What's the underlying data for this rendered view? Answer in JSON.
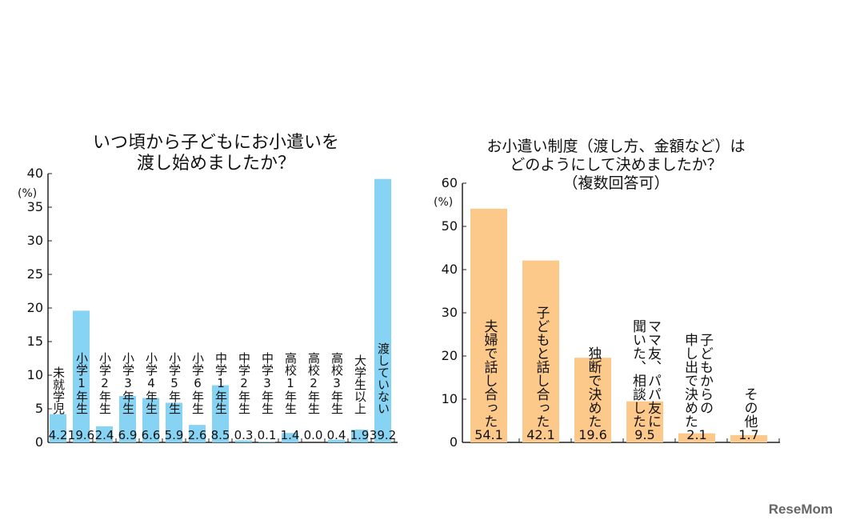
{
  "chart_data": [
    {
      "type": "bar",
      "title": "いつ頃から子どもにお小遣いを\n渡し始めましたか？",
      "ylabel": "(%)",
      "ylim": [
        0,
        40
      ],
      "yticks": [
        0,
        5,
        10,
        15,
        20,
        25,
        30,
        35,
        40
      ],
      "color": "#87d3f3",
      "categories": [
        "未就学児",
        "小学1年生",
        "小学2年生",
        "小学3年生",
        "小学4年生",
        "小学5年生",
        "小学6年生",
        "中学1年生",
        "中学2年生",
        "中学3年生",
        "高校1年生",
        "高校2年生",
        "高校3年生",
        "大学生以上",
        "渡していない"
      ],
      "values": [
        4.2,
        19.6,
        2.4,
        6.9,
        6.6,
        5.9,
        2.6,
        8.5,
        0.3,
        0.1,
        1.4,
        0.0,
        0.4,
        1.9,
        39.2
      ],
      "value_labels": [
        "4.2",
        "19.6",
        "2.4",
        "6.9",
        "6.6",
        "5.9",
        "2.6",
        "8.5",
        "0.3",
        "0.1",
        "1.4",
        "0.0",
        "0.4",
        "1.9",
        "39.2"
      ]
    },
    {
      "type": "bar",
      "title": "お小遣い制度（渡し方、金額など）は\nどのようにして決めましたか？\n（複数回答可）",
      "ylabel": "(%)",
      "ylim": [
        0,
        60
      ],
      "yticks": [
        0,
        10,
        20,
        30,
        40,
        50,
        60
      ],
      "color": "#fcc98a",
      "categories": [
        "夫婦で話し合った",
        "子どもと話し合った",
        "独断で決めた",
        "ママ友、パパ友に\n聞いた、相談した",
        "子どもからの\n申し出で決めた",
        "その他"
      ],
      "values": [
        54.1,
        42.1,
        19.6,
        9.5,
        2.1,
        1.7
      ],
      "value_labels": [
        "54.1",
        "42.1",
        "19.6",
        "9.5",
        "2.1",
        "1.7"
      ]
    }
  ],
  "watermark": "ReseMom"
}
